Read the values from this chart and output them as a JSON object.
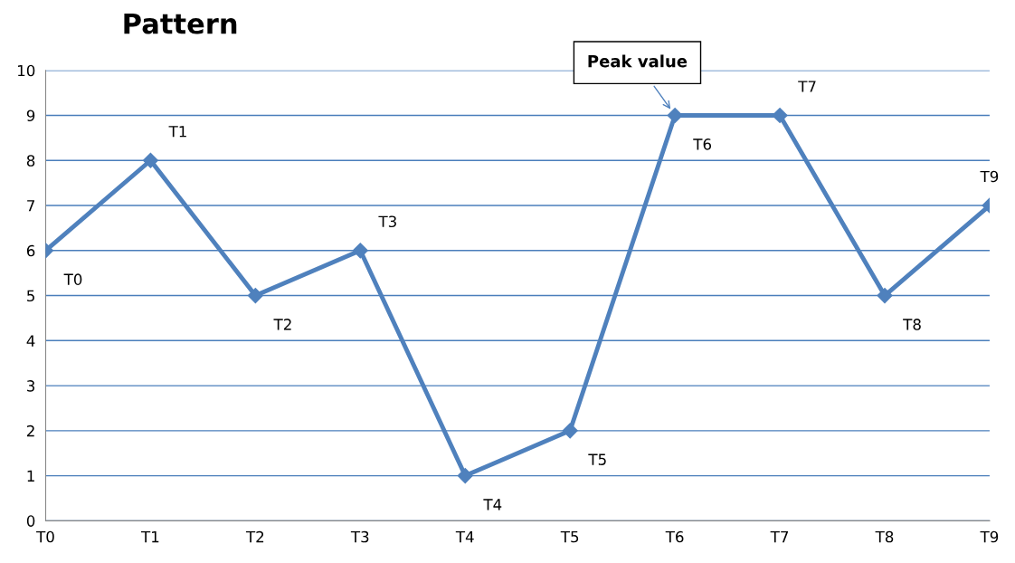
{
  "chart_data": {
    "type": "line",
    "title": "Pattern",
    "categories": [
      "T0",
      "T1",
      "T2",
      "T3",
      "T4",
      "T5",
      "T6",
      "T7",
      "T8",
      "T9"
    ],
    "series": [
      {
        "color": "#4f81bd",
        "values": [
          6,
          8,
          5,
          6,
          1,
          2,
          9,
          9,
          5,
          7
        ]
      }
    ],
    "ylim": [
      0,
      10
    ],
    "yticks": [
      0,
      1,
      2,
      3,
      4,
      5,
      6,
      7,
      8,
      9,
      10
    ],
    "grid": "y",
    "marker": "diamond",
    "line_style": "solid",
    "annotations": [
      {
        "text": "T0",
        "x": "T0",
        "y": 6
      },
      {
        "text": "T1",
        "x": "T1",
        "y": 8
      },
      {
        "text": "T2",
        "x": "T2",
        "y": 5
      },
      {
        "text": "T3",
        "x": "T3",
        "y": 6
      },
      {
        "text": "T4",
        "x": "T4",
        "y": 1
      },
      {
        "text": "T5",
        "x": "T5",
        "y": 2
      },
      {
        "text": "T6",
        "x": "T6",
        "y": 9
      },
      {
        "text": "T7",
        "x": "T7",
        "y": 9
      },
      {
        "text": "T8",
        "x": "T8",
        "y": 5
      },
      {
        "text": "T9",
        "x": "T9",
        "y": 7
      },
      {
        "text": "Peak value",
        "x": "T6",
        "y": 9
      }
    ]
  }
}
